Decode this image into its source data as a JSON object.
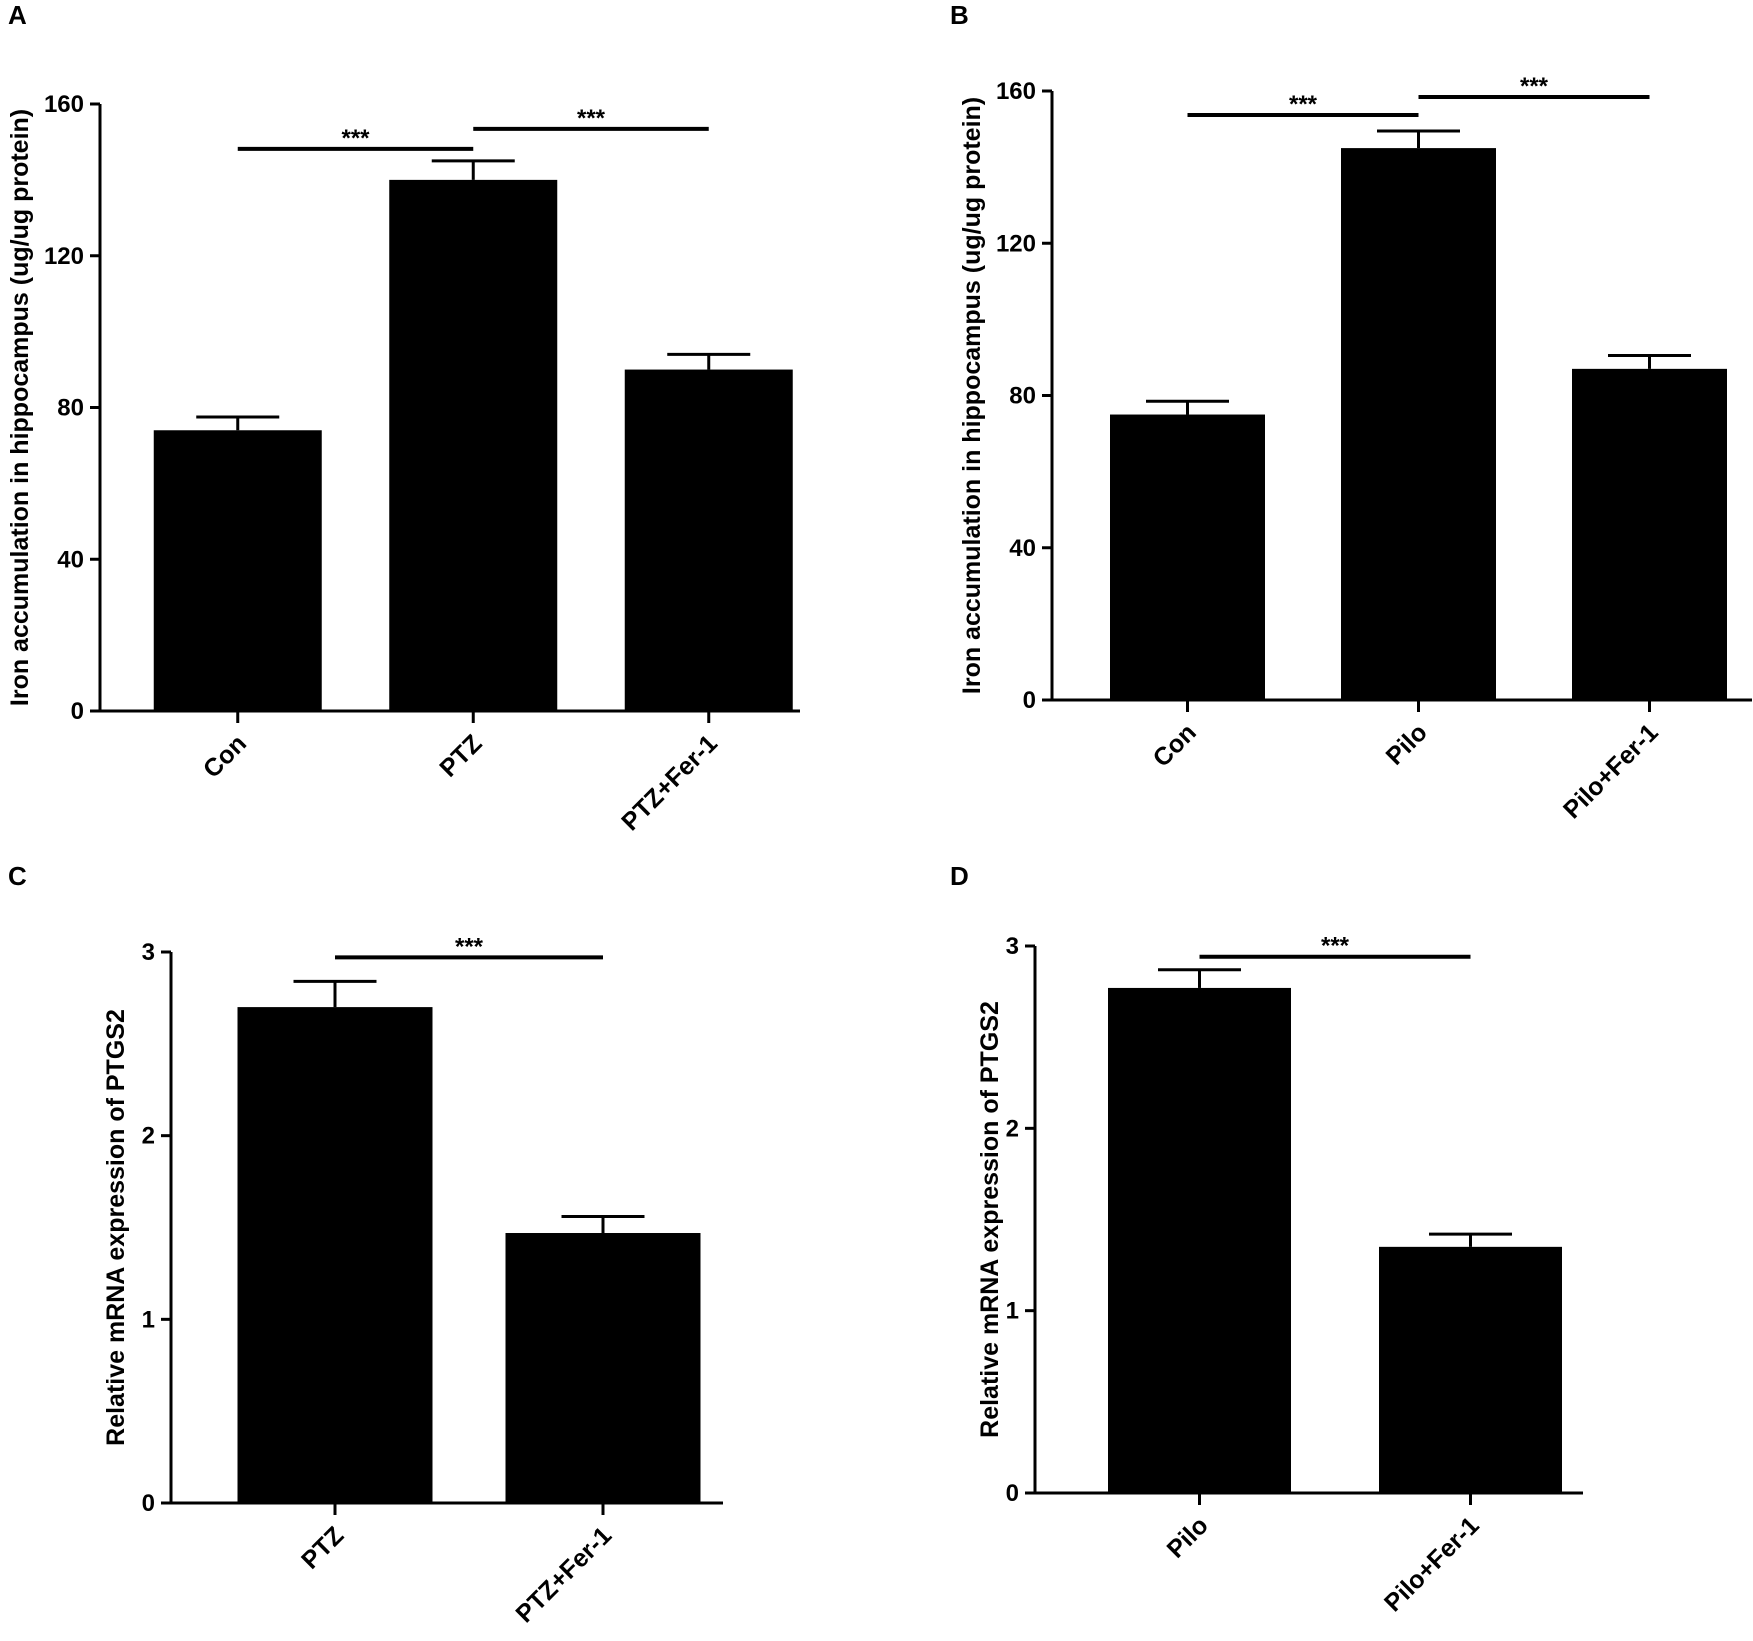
{
  "figure": {
    "panels": [
      "A",
      "B",
      "C",
      "D"
    ]
  },
  "chart_data": [
    {
      "panel": "A",
      "type": "bar",
      "title": "",
      "xlabel": "",
      "ylabel": "Iron accumulation in hippocampus (ug/ug protein)",
      "categories": [
        "Con",
        "PTZ",
        "PTZ+Fer-1"
      ],
      "values": [
        74,
        140,
        90
      ],
      "errors": [
        3.5,
        5,
        4
      ],
      "ylim": [
        0,
        160
      ],
      "yticks": [
        "0",
        "40",
        "80",
        "120",
        "160"
      ],
      "bar_color": "#000000",
      "significance": [
        {
          "from": 0,
          "to": 1,
          "label": "***"
        },
        {
          "from": 1,
          "to": 2,
          "label": "***"
        }
      ]
    },
    {
      "panel": "B",
      "type": "bar",
      "title": "",
      "xlabel": "",
      "ylabel": "Iron accumulation in hippocampus (ug/ug protein)",
      "categories": [
        "Con",
        "Pilo",
        "Pilo+Fer-1"
      ],
      "values": [
        75,
        145,
        87
      ],
      "errors": [
        3.5,
        4.5,
        3.5
      ],
      "ylim": [
        0,
        160
      ],
      "yticks": [
        "0",
        "40",
        "80",
        "120",
        "160"
      ],
      "bar_color": "#000000",
      "significance": [
        {
          "from": 0,
          "to": 1,
          "label": "***"
        },
        {
          "from": 1,
          "to": 2,
          "label": "***"
        }
      ]
    },
    {
      "panel": "C",
      "type": "bar",
      "title": "",
      "xlabel": "",
      "ylabel": "Relative mRNA expression of PTGS2",
      "categories": [
        "PTZ",
        "PTZ+Fer-1"
      ],
      "values": [
        2.7,
        1.47
      ],
      "errors": [
        0.14,
        0.09
      ],
      "ylim": [
        0,
        3
      ],
      "yticks": [
        "0",
        "1",
        "2",
        "3"
      ],
      "bar_color": "#000000",
      "significance": [
        {
          "from": 0,
          "to": 1,
          "label": "***"
        }
      ]
    },
    {
      "panel": "D",
      "type": "bar",
      "title": "",
      "xlabel": "",
      "ylabel": "Relative mRNA expression of PTGS2",
      "categories": [
        "Pilo",
        "Pilo+Fer-1"
      ],
      "values": [
        2.77,
        1.35
      ],
      "errors": [
        0.1,
        0.07
      ],
      "ylim": [
        0,
        3
      ],
      "yticks": [
        "0",
        "1",
        "2",
        "3"
      ],
      "bar_color": "#000000",
      "significance": [
        {
          "from": 0,
          "to": 1,
          "label": "***"
        }
      ]
    }
  ]
}
